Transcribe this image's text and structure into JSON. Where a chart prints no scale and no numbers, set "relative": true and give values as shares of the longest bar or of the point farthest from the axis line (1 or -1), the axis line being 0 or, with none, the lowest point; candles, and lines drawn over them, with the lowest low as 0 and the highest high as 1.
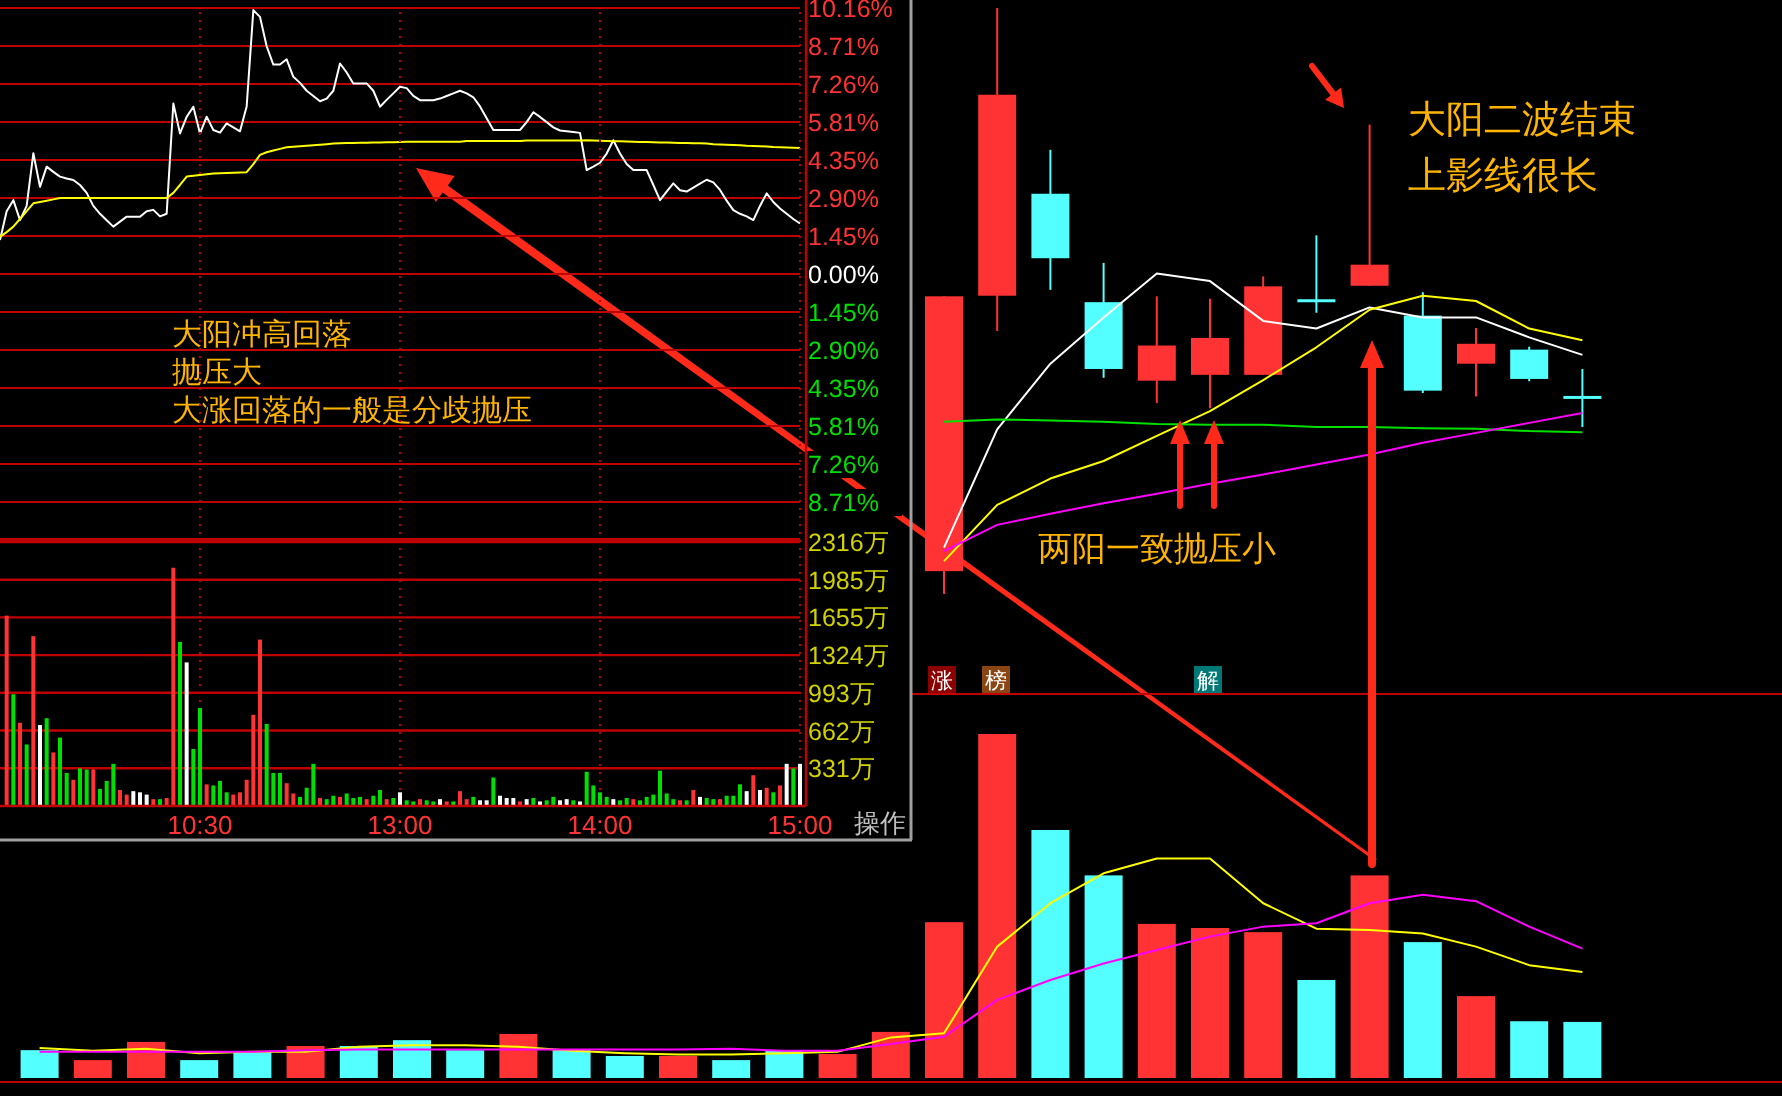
{
  "chart_data": [
    {
      "type": "line",
      "ylim": [
        -10.16,
        10.16
      ],
      "grid": true,
      "tick_labels": "y",
      "categories": [
        null,
        null,
        null,
        null,
        null,
        null,
        null,
        null,
        null,
        null,
        null,
        null,
        null,
        null,
        null,
        null,
        null,
        null,
        null,
        null,
        null,
        null,
        null,
        null,
        null,
        null,
        null,
        null,
        null,
        null,
        null,
        null,
        null,
        null,
        null,
        null,
        null,
        null,
        null,
        null,
        null,
        null,
        null,
        null,
        null,
        null,
        null,
        null,
        null,
        null,
        null,
        null,
        null,
        null,
        null,
        null,
        null,
        null,
        null,
        null,
        null,
        null,
        null,
        null,
        null,
        null,
        null,
        null,
        null,
        null,
        null,
        null,
        null,
        null,
        null,
        null,
        null,
        null,
        null,
        null,
        null,
        null,
        null,
        null,
        null,
        null,
        null,
        null,
        null,
        null,
        null,
        null,
        null,
        null,
        null,
        null,
        null,
        null,
        null,
        null,
        null,
        null,
        null,
        null,
        null,
        null,
        null,
        null,
        null,
        null,
        null,
        null,
        null,
        null,
        null,
        null,
        null,
        null,
        null,
        null,
        null
      ],
      "yticks": [
        {
          "value": 10.16,
          "label": "10.16%"
        },
        {
          "value": 8.71,
          "label": "8.71%"
        },
        {
          "value": 7.26,
          "label": "7.26%"
        },
        {
          "value": 5.81,
          "label": "5.81%"
        },
        {
          "value": 4.35,
          "label": "4.35%"
        },
        {
          "value": 2.9,
          "label": "2.90%"
        },
        {
          "value": 1.45,
          "label": "1.45%"
        },
        {
          "value": 0,
          "label": "0.00%"
        },
        {
          "value": -1.45,
          "label": "1.45%"
        },
        {
          "value": -2.9,
          "label": "2.90%"
        },
        {
          "value": -4.35,
          "label": "4.35%"
        },
        {
          "value": -5.81,
          "label": "5.81%"
        },
        {
          "value": -7.26,
          "label": "7.26%"
        },
        {
          "value": -8.71,
          "label": "8.71%"
        }
      ],
      "series": [
        {
          "color": "#ffffff",
          "values": [
            1.3,
            2.4,
            2.82,
            2.06,
            2.6,
            4.61,
            3.33,
            4.1,
            3.9,
            3.72,
            3.65,
            3.59,
            3.4,
            3.1,
            2.6,
            2.3,
            2.05,
            1.81,
            2.0,
            2.19,
            2.19,
            2.19,
            2.4,
            2.45,
            2.2,
            2.3,
            6.51,
            5.37,
            6.0,
            6.39,
            5.37,
            6.01,
            5.5,
            5.4,
            5.75,
            5.6,
            5.45,
            6.4,
            10.08,
            9.82,
            8.7,
            8.0,
            8.0,
            8.2,
            7.53,
            7.3,
            7.0,
            6.8,
            6.6,
            6.7,
            7.0,
            8.04,
            7.7,
            7.28,
            7.28,
            7.28,
            7.0,
            6.39,
            6.65,
            6.9,
            7.15,
            7.1,
            6.8,
            6.64,
            6.64,
            6.64,
            6.7,
            6.8,
            6.9,
            7.0,
            6.9,
            6.75,
            6.4,
            5.95,
            5.5,
            5.5,
            5.5,
            5.5,
            5.5,
            5.8,
            6.18,
            6.0,
            5.8,
            5.6,
            5.48,
            5.45,
            5.42,
            5.39,
            3.97,
            4.1,
            4.25,
            4.6,
            5.11,
            4.6,
            4.2,
            3.97,
            3.97,
            3.97,
            3.4,
            2.82,
            3.15,
            3.46,
            3.2,
            3.15,
            3.3,
            3.45,
            3.6,
            3.5,
            3.21,
            2.8,
            2.44,
            2.3,
            2.2,
            2.06,
            2.6,
            3.08,
            2.75,
            2.5,
            2.3,
            2.1,
            1.93
          ]
        },
        {
          "color": "#ffff00",
          "values": [
            1.42,
            1.6,
            1.81,
            2.1,
            2.4,
            2.7,
            2.75,
            2.8,
            2.85,
            2.9,
            2.9,
            2.9,
            2.9,
            2.9,
            2.9,
            2.9,
            2.9,
            2.9,
            2.9,
            2.9,
            2.9,
            2.9,
            2.9,
            2.9,
            2.9,
            2.9,
            3.1,
            3.4,
            3.72,
            3.75,
            3.78,
            3.81,
            3.84,
            3.85,
            3.86,
            3.87,
            3.88,
            3.89,
            4.2,
            4.55,
            4.65,
            4.72,
            4.78,
            4.84,
            4.86,
            4.88,
            4.9,
            4.92,
            4.94,
            4.96,
            4.98,
            4.99,
            5.0,
            5.0,
            5.01,
            5.01,
            5.02,
            5.02,
            5.03,
            5.03,
            5.04,
            5.05,
            5.05,
            5.05,
            5.05,
            5.05,
            5.05,
            5.05,
            5.05,
            5.05,
            5.08,
            5.08,
            5.08,
            5.08,
            5.08,
            5.08,
            5.08,
            5.08,
            5.08,
            5.1,
            5.1,
            5.1,
            5.1,
            5.1,
            5.1,
            5.1,
            5.1,
            5.1,
            5.11,
            5.1,
            5.09,
            5.08,
            5.07,
            5.07,
            5.06,
            5.05,
            5.04,
            5.04,
            5.03,
            5.02,
            5.02,
            5.01,
            5.0,
            5.0,
            4.99,
            4.99,
            4.98,
            4.96,
            4.95,
            4.94,
            4.93,
            4.92,
            4.9,
            4.89,
            4.88,
            4.87,
            4.85,
            4.84,
            4.83,
            4.82,
            4.81
          ]
        }
      ],
      "annotations": [
        "大阳冲高回落",
        "抛压大",
        "大涨回落的一般是分歧抛压"
      ]
    },
    {
      "type": "bar",
      "ylim": [
        0,
        2316
      ],
      "grid": true,
      "categories": [
        null,
        null,
        null,
        null,
        null,
        null,
        null,
        null,
        null,
        null,
        null,
        null,
        null,
        null,
        null,
        null,
        null,
        null,
        null,
        null,
        null,
        null,
        null,
        null,
        null,
        null,
        null,
        null,
        null,
        null,
        "10:30",
        null,
        null,
        null,
        null,
        null,
        null,
        null,
        null,
        null,
        null,
        null,
        null,
        null,
        null,
        null,
        null,
        null,
        null,
        null,
        null,
        null,
        null,
        null,
        null,
        null,
        null,
        null,
        null,
        null,
        "13:00",
        null,
        null,
        null,
        null,
        null,
        null,
        null,
        null,
        null,
        null,
        null,
        null,
        null,
        null,
        null,
        null,
        null,
        null,
        null,
        null,
        null,
        null,
        null,
        null,
        null,
        null,
        null,
        null,
        null,
        "14:00",
        null,
        null,
        null,
        null,
        null,
        null,
        null,
        null,
        null,
        null,
        null,
        null,
        null,
        null,
        null,
        null,
        null,
        null,
        null,
        null,
        null,
        null,
        null,
        null,
        null,
        null,
        null,
        null,
        null,
        "15:00"
      ],
      "yticks": [
        {
          "value": 331,
          "label": "331万"
        },
        {
          "value": 662,
          "label": "662万"
        },
        {
          "value": 993,
          "label": "993万"
        },
        {
          "value": 1324,
          "label": "1324万"
        },
        {
          "value": 1655,
          "label": "1655万"
        },
        {
          "value": 1985,
          "label": "1985万"
        },
        {
          "value": 2316,
          "label": "2316万"
        }
      ],
      "values": [
        null,
        1670,
        980,
        730,
        540,
        1490,
        710,
        770,
        470,
        600,
        290,
        230,
        330,
        320,
        320,
        150,
        220,
        370,
        140,
        100,
        130,
        120,
        100,
        60,
        60,
        70,
        2090,
        1440,
        1260,
        500,
        860,
        190,
        180,
        220,
        120,
        100,
        120,
        230,
        800,
        1460,
        720,
        290,
        290,
        200,
        110,
        80,
        160,
        370,
        70,
        60,
        90,
        80,
        110,
        70,
        80,
        60,
        90,
        140,
        60,
        70,
        120,
        50,
        40,
        60,
        50,
        40,
        60,
        40,
        40,
        130,
        60,
        80,
        50,
        50,
        250,
        90,
        70,
        70,
        40,
        60,
        70,
        40,
        50,
        80,
        50,
        60,
        50,
        40,
        300,
        180,
        120,
        80,
        60,
        50,
        70,
        60,
        50,
        80,
        100,
        310,
        110,
        60,
        50,
        50,
        140,
        80,
        70,
        60,
        60,
        90,
        90,
        190,
        130,
        270,
        140,
        160,
        120,
        180,
        370,
        330,
        370
      ],
      "colors": [
        null,
        "#ff3333",
        "#00e000",
        "#ff3333",
        "#00e000",
        "#ff3333",
        "#ffffff",
        "#00e000",
        "#ff3333",
        "#00e000",
        "#00e000",
        "#ff3333",
        "#00e000",
        "#00e000",
        "#ff3333",
        "#00e000",
        "#00e000",
        "#00e000",
        "#ff3333",
        "#ff3333",
        "#ffffff",
        "#ffffff",
        "#ffffff",
        "#ff3333",
        "#00e000",
        "#ff3333",
        "#ff3333",
        "#00e000",
        "#ffffff",
        "#00e000",
        "#00e000",
        "#ff3333",
        "#00e000",
        "#00e000",
        "#00e000",
        "#ff3333",
        "#ff3333",
        "#ff3333",
        "#ff3333",
        "#ff3333",
        "#00e000",
        "#00e000",
        "#00e000",
        "#ff3333",
        "#ff3333",
        "#00e000",
        "#00e000",
        "#00e000",
        "#ff3333",
        "#00e000",
        "#00e000",
        "#ff3333",
        "#00e000",
        "#00e000",
        "#00e000",
        "#ff3333",
        "#00e000",
        "#00e000",
        "#ff3333",
        "#00e000",
        "#ffffff",
        "#00e000",
        "#00e000",
        "#ff3333",
        "#00e000",
        "#00e000",
        "#ffffff",
        "#ff3333",
        "#00e000",
        "#ff3333",
        "#ff3333",
        "#00e000",
        "#ffffff",
        "#ffffff",
        "#00e000",
        "#ffffff",
        "#ffffff",
        "#ffffff",
        "#ff3333",
        "#ffffff",
        "#00e000",
        "#ffffff",
        "#00e000",
        "#00e000",
        "#ffffff",
        "#ffffff",
        "#00e000",
        "#ffffff",
        "#00e000",
        "#00e000",
        "#00e000",
        "#00e000",
        "#ffffff",
        "#00e000",
        "#00e000",
        "#ff3333",
        "#00e000",
        "#00e000",
        "#00e000",
        "#00e000",
        "#00e000",
        "#00e000",
        "#ff3333",
        "#00e000",
        "#ff3333",
        "#ffffff",
        "#00e000",
        "#00e000",
        "#ff3333",
        "#00e000",
        "#00e000",
        "#00e000",
        "#ffffff",
        "#ff3333",
        "#ffffff",
        "#ff3333",
        "#00e000",
        "#ff3333",
        "#ffffff",
        "#00e000",
        "#ffffff"
      ],
      "annotations": [
        "操作"
      ]
    },
    {
      "type": "candlestick",
      "relative": true,
      "categories": [
        null,
        null,
        null,
        null,
        null,
        null,
        null,
        null,
        null,
        null,
        null,
        null,
        null,
        null,
        null,
        null,
        null,
        null,
        null,
        null,
        null,
        null,
        null,
        null,
        null,
        null,
        null,
        null,
        null,
        null
      ],
      "ohlc": [
        null,
        null,
        null,
        null,
        null,
        null,
        null,
        null,
        null,
        null,
        null,
        null,
        null,
        null,
        null,
        null,
        null,
        [
          0.039,
          0.508,
          0,
          0.508
        ],
        [
          0.509,
          1,
          0.449,
          0.852
        ],
        [
          0.683,
          0.758,
          0.519,
          0.573
        ],
        [
          0.498,
          0.565,
          0.369,
          0.384
        ],
        [
          0.364,
          0.508,
          0.326,
          0.424
        ],
        [
          0.374,
          0.504,
          0.317,
          0.437
        ],
        [
          0.374,
          0.542,
          0.374,
          0.525
        ],
        [
          0.503,
          0.612,
          0.48,
          0.503
        ],
        [
          0.526,
          0.801,
          0.526,
          0.562
        ],
        [
          0.475,
          0.515,
          0.343,
          0.347
        ],
        [
          0.393,
          0.454,
          0.337,
          0.427
        ],
        [
          0.417,
          0.422,
          0.363,
          0.367
        ],
        [
          0.338,
          0.384,
          0.285,
          0.338
        ]
      ],
      "colors": [
        null,
        null,
        null,
        null,
        null,
        null,
        null,
        null,
        null,
        null,
        null,
        null,
        null,
        null,
        null,
        null,
        null,
        "#ff3333",
        "#ff3333",
        "#54ffff",
        "#54ffff",
        "#ff3333",
        "#ff3333",
        "#ff3333",
        "#54ffff",
        "#ff3333",
        "#54ffff",
        "#ff3333",
        "#54ffff",
        "#54ffff"
      ],
      "series": [
        {
          "type": "line",
          "color": "#ffffff",
          "values": [
            null,
            null,
            null,
            null,
            null,
            null,
            null,
            null,
            null,
            null,
            null,
            null,
            null,
            null,
            null,
            null,
            null,
            0.079,
            0.281,
            0.393,
            0.472,
            0.547,
            0.534,
            0.466,
            0.453,
            0.489,
            0.472,
            0.472,
            0.438,
            0.408
          ]
        },
        {
          "type": "line",
          "color": "#ffff00",
          "values": [
            null,
            null,
            null,
            null,
            null,
            null,
            null,
            null,
            null,
            null,
            null,
            null,
            null,
            null,
            null,
            null,
            null,
            0.056,
            0.152,
            0.197,
            0.227,
            0.27,
            0.312,
            0.365,
            0.421,
            0.485,
            0.509,
            0.5,
            0.453,
            0.433
          ]
        },
        {
          "type": "line",
          "color": "#00e000",
          "values": [
            null,
            null,
            null,
            null,
            null,
            null,
            null,
            null,
            null,
            null,
            null,
            null,
            null,
            null,
            null,
            null,
            null,
            0.294,
            0.298,
            0.296,
            0.294,
            0.29,
            0.289,
            0.289,
            0.285,
            0.285,
            0.283,
            0.282,
            0.278,
            0.276
          ]
        },
        {
          "type": "line",
          "color": "#ff00ff",
          "values": [
            null,
            null,
            null,
            null,
            null,
            null,
            null,
            null,
            null,
            null,
            null,
            null,
            null,
            null,
            null,
            null,
            null,
            0.073,
            0.118,
            0.137,
            0.155,
            0.171,
            0.188,
            0.204,
            0.221,
            0.238,
            0.258,
            0.275,
            0.292,
            0.309
          ]
        }
      ],
      "annotations": [
        "大阳二波结束",
        "上影线很长",
        "两阳一致抛压小",
        "涨",
        "榜",
        "解"
      ]
    },
    {
      "type": "bar",
      "relative": true,
      "categories": [
        null,
        null,
        null,
        null,
        null,
        null,
        null,
        null,
        null,
        null,
        null,
        null,
        null,
        null,
        null,
        null,
        null,
        null,
        null,
        null,
        null,
        null,
        null,
        null,
        null,
        null,
        null,
        null,
        null,
        null
      ],
      "values": [
        0.081,
        0.052,
        0.105,
        0.052,
        0.076,
        0.093,
        0.093,
        0.11,
        0.081,
        0.128,
        0.081,
        0.064,
        0.064,
        0.052,
        0.081,
        0.07,
        0.134,
        0.453,
        1,
        0.721,
        0.589,
        0.448,
        0.436,
        0.424,
        0.285,
        0.589,
        0.395,
        0.238,
        0.165,
        0.163
      ],
      "colors": [
        "#54ffff",
        "#ff3333",
        "#ff3333",
        "#54ffff",
        "#54ffff",
        "#ff3333",
        "#54ffff",
        "#54ffff",
        "#54ffff",
        "#ff3333",
        "#54ffff",
        "#54ffff",
        "#ff3333",
        "#54ffff",
        "#54ffff",
        "#ff3333",
        "#ff3333",
        "#ff3333",
        "#ff3333",
        "#54ffff",
        "#54ffff",
        "#ff3333",
        "#ff3333",
        "#ff3333",
        "#54ffff",
        "#ff3333",
        "#54ffff",
        "#ff3333",
        "#54ffff",
        "#54ffff"
      ],
      "series": [
        {
          "type": "line",
          "color": "#ffff00",
          "values": [
            0.087,
            0.079,
            0.085,
            0.072,
            0.076,
            0.076,
            0.091,
            0.095,
            0.095,
            0.091,
            0.079,
            0.072,
            0.068,
            0.068,
            0.072,
            0.076,
            0.118,
            0.13,
            0.382,
            0.508,
            0.595,
            0.638,
            0.638,
            0.508,
            0.434,
            0.43,
            0.42,
            0.382,
            0.328,
            0.308
          ]
        },
        {
          "type": "line",
          "color": "#ff00ff",
          "values": [
            0.076,
            0.076,
            0.076,
            0.076,
            0.076,
            0.081,
            0.083,
            0.083,
            0.083,
            0.083,
            0.083,
            0.083,
            0.083,
            0.085,
            0.079,
            0.079,
            0.099,
            0.12,
            0.227,
            0.285,
            0.333,
            0.372,
            0.411,
            0.44,
            0.45,
            0.508,
            0.533,
            0.514,
            0.44,
            0.376
          ]
        }
      ]
    }
  ]
}
